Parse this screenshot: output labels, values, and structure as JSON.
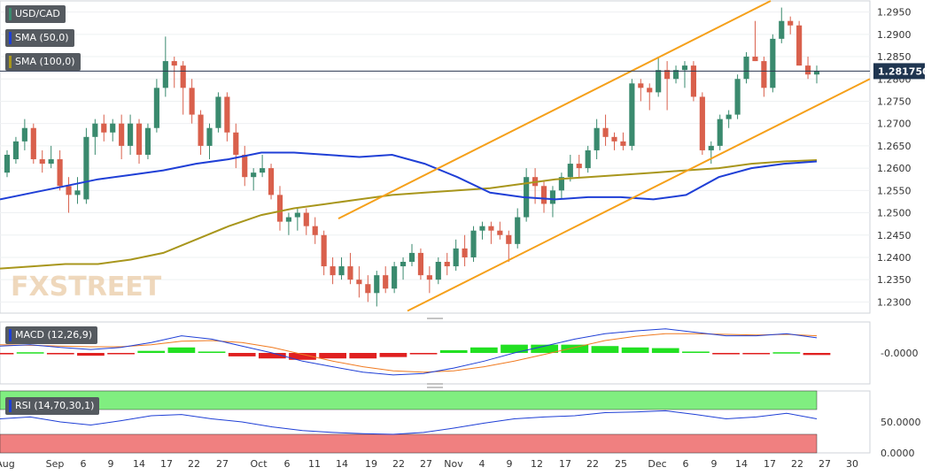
{
  "chart_data": {
    "type": "candlestick",
    "symbol": "USD/CAD",
    "last_price": "1.281750",
    "price_axis": {
      "ticks": [
        "1.2950",
        "1.2900",
        "1.2850",
        "1.2800",
        "1.2750",
        "1.2700",
        "1.2650",
        "1.2600",
        "1.2550",
        "1.2500",
        "1.2450",
        "1.2400",
        "1.2350",
        "1.2300"
      ],
      "range": [
        1.2275,
        1.2975
      ]
    },
    "x_axis_labels": [
      "Aug",
      "Sep",
      "6",
      "9",
      "14",
      "17",
      "22",
      "27",
      "Oct",
      "6",
      "11",
      "14",
      "19",
      "22",
      "27",
      "Nov",
      "4",
      "9",
      "12",
      "17",
      "22",
      "25",
      "Dec",
      "6",
      "9",
      "14",
      "17",
      "22",
      "27",
      "30"
    ],
    "indicators": {
      "sma50": {
        "name": "SMA (50,0)",
        "color": "#1f3fd6"
      },
      "sma100": {
        "name": "SMA (100,0)",
        "color": "#a8961c"
      },
      "macd": {
        "name": "MACD (12,26,9)",
        "zero_label": "-0.0000"
      },
      "rsi": {
        "name": "RSI (14,70,30,1)",
        "levels": [
          "50.0000",
          "0.0000"
        ]
      }
    },
    "colors": {
      "up": "#3a8a6e",
      "down": "#d9604c",
      "channel": "#f5a01a",
      "hist_pos": "#22e022",
      "hist_neg": "#e02020",
      "rsi_overbought": "#80ee80",
      "rsi_oversold": "#f08080"
    },
    "candles": [
      [
        1.259,
        1.264,
        1.258,
        1.263
      ],
      [
        1.262,
        1.267,
        1.261,
        1.266
      ],
      [
        1.266,
        1.271,
        1.264,
        1.269
      ],
      [
        1.269,
        1.27,
        1.261,
        1.262
      ],
      [
        1.262,
        1.264,
        1.259,
        1.261
      ],
      [
        1.261,
        1.265,
        1.26,
        1.262
      ],
      [
        1.262,
        1.264,
        1.255,
        1.256
      ],
      [
        1.256,
        1.258,
        1.25,
        1.254
      ],
      [
        1.254,
        1.258,
        1.252,
        1.255
      ],
      [
        1.253,
        1.269,
        1.252,
        1.267
      ],
      [
        1.267,
        1.271,
        1.263,
        1.27
      ],
      [
        1.27,
        1.272,
        1.266,
        1.268
      ],
      [
        1.268,
        1.271,
        1.266,
        1.27
      ],
      [
        1.27,
        1.272,
        1.262,
        1.265
      ],
      [
        1.265,
        1.272,
        1.263,
        1.27
      ],
      [
        1.27,
        1.271,
        1.261,
        1.263
      ],
      [
        1.263,
        1.27,
        1.262,
        1.269
      ],
      [
        1.269,
        1.28,
        1.268,
        1.278
      ],
      [
        1.278,
        1.2895,
        1.276,
        1.284
      ],
      [
        1.284,
        1.285,
        1.278,
        1.283
      ],
      [
        1.283,
        1.284,
        1.272,
        1.278
      ],
      [
        1.278,
        1.28,
        1.27,
        1.272
      ],
      [
        1.272,
        1.273,
        1.263,
        1.265
      ],
      [
        1.265,
        1.27,
        1.262,
        1.269
      ],
      [
        1.269,
        1.277,
        1.268,
        1.276
      ],
      [
        1.276,
        1.277,
        1.266,
        1.268
      ],
      [
        1.268,
        1.27,
        1.26,
        1.263
      ],
      [
        1.263,
        1.265,
        1.256,
        1.258
      ],
      [
        1.258,
        1.26,
        1.255,
        1.259
      ],
      [
        1.259,
        1.263,
        1.258,
        1.26
      ],
      [
        1.26,
        1.261,
        1.253,
        1.254
      ],
      [
        1.254,
        1.256,
        1.246,
        1.248
      ],
      [
        1.248,
        1.25,
        1.245,
        1.249
      ],
      [
        1.249,
        1.251,
        1.246,
        1.25
      ],
      [
        1.25,
        1.251,
        1.245,
        1.247
      ],
      [
        1.247,
        1.249,
        1.243,
        1.245
      ],
      [
        1.245,
        1.246,
        1.236,
        1.238
      ],
      [
        1.238,
        1.24,
        1.234,
        1.236
      ],
      [
        1.236,
        1.24,
        1.235,
        1.238
      ],
      [
        1.238,
        1.241,
        1.234,
        1.235
      ],
      [
        1.235,
        1.238,
        1.231,
        1.234
      ],
      [
        1.234,
        1.236,
        1.23,
        1.232
      ],
      [
        1.232,
        1.237,
        1.229,
        1.236
      ],
      [
        1.236,
        1.238,
        1.232,
        1.233
      ],
      [
        1.233,
        1.239,
        1.232,
        1.238
      ],
      [
        1.238,
        1.24,
        1.235,
        1.239
      ],
      [
        1.239,
        1.243,
        1.238,
        1.241
      ],
      [
        1.241,
        1.242,
        1.235,
        1.236
      ],
      [
        1.236,
        1.238,
        1.232,
        1.235
      ],
      [
        1.235,
        1.24,
        1.234,
        1.239
      ],
      [
        1.239,
        1.241,
        1.236,
        1.238
      ],
      [
        1.238,
        1.244,
        1.237,
        1.242
      ],
      [
        1.242,
        1.245,
        1.238,
        1.24
      ],
      [
        1.24,
        1.247,
        1.239,
        1.246
      ],
      [
        1.246,
        1.248,
        1.244,
        1.247
      ],
      [
        1.247,
        1.248,
        1.243,
        1.246
      ],
      [
        1.246,
        1.248,
        1.244,
        1.245
      ],
      [
        1.245,
        1.246,
        1.239,
        1.243
      ],
      [
        1.243,
        1.251,
        1.242,
        1.249
      ],
      [
        1.249,
        1.26,
        1.248,
        1.258
      ],
      [
        1.258,
        1.26,
        1.252,
        1.256
      ],
      [
        1.256,
        1.257,
        1.25,
        1.252
      ],
      [
        1.252,
        1.256,
        1.249,
        1.255
      ],
      [
        1.255,
        1.259,
        1.253,
        1.258
      ],
      [
        1.258,
        1.263,
        1.257,
        1.261
      ],
      [
        1.261,
        1.263,
        1.258,
        1.26
      ],
      [
        1.26,
        1.265,
        1.259,
        1.264
      ],
      [
        1.264,
        1.271,
        1.262,
        1.269
      ],
      [
        1.269,
        1.272,
        1.265,
        1.267
      ],
      [
        1.267,
        1.268,
        1.264,
        1.266
      ],
      [
        1.266,
        1.268,
        1.264,
        1.265
      ],
      [
        1.265,
        1.28,
        1.264,
        1.279
      ],
      [
        1.279,
        1.28,
        1.275,
        1.278
      ],
      [
        1.278,
        1.279,
        1.273,
        1.277
      ],
      [
        1.277,
        1.285,
        1.276,
        1.282
      ],
      [
        1.282,
        1.284,
        1.273,
        1.28
      ],
      [
        1.28,
        1.283,
        1.279,
        1.282
      ],
      [
        1.282,
        1.284,
        1.278,
        1.283
      ],
      [
        1.283,
        1.284,
        1.275,
        1.276
      ],
      [
        1.276,
        1.277,
        1.263,
        1.264
      ],
      [
        1.264,
        1.266,
        1.261,
        1.265
      ],
      [
        1.265,
        1.272,
        1.264,
        1.271
      ],
      [
        1.271,
        1.273,
        1.269,
        1.272
      ],
      [
        1.272,
        1.281,
        1.271,
        1.28
      ],
      [
        1.28,
        1.286,
        1.279,
        1.285
      ],
      [
        1.285,
        1.293,
        1.284,
        1.284
      ],
      [
        1.284,
        1.285,
        1.276,
        1.278
      ],
      [
        1.278,
        1.29,
        1.277,
        1.289
      ],
      [
        1.289,
        1.296,
        1.288,
        1.293
      ],
      [
        1.293,
        1.294,
        1.29,
        1.292
      ],
      [
        1.292,
        1.293,
        1.283,
        1.283
      ],
      [
        1.283,
        1.285,
        1.28,
        1.281
      ],
      [
        1.281,
        1.283,
        1.279,
        1.2818
      ]
    ],
    "sma50": [
      1.253,
      1.2545,
      1.256,
      1.2575,
      1.2585,
      1.2595,
      1.261,
      1.262,
      1.2635,
      1.2635,
      1.263,
      1.2625,
      1.263,
      1.261,
      1.258,
      1.2545,
      1.2535,
      1.253,
      1.2535,
      1.2535,
      1.253,
      1.254,
      1.258,
      1.26,
      1.261,
      1.2615
    ],
    "sma100": [
      1.2375,
      1.238,
      1.2385,
      1.2385,
      1.2395,
      1.241,
      1.244,
      1.247,
      1.2495,
      1.251,
      1.252,
      1.253,
      1.254,
      1.2545,
      1.255,
      1.2555,
      1.2565,
      1.2575,
      1.258,
      1.2585,
      1.259,
      1.2595,
      1.26,
      1.261,
      1.2615,
      1.2618
    ],
    "macd": [
      0.001,
      0.0012,
      0.0008,
      0.0005,
      0.0008,
      0.0015,
      0.0025,
      0.002,
      0.001,
      0.0,
      -0.0012,
      -0.002,
      -0.0028,
      -0.0032,
      -0.003,
      -0.0022,
      -0.0012,
      0.0,
      0.001,
      0.002,
      0.0028,
      0.0032,
      0.0035,
      0.003,
      0.0025,
      0.0025,
      0.0028,
      0.0022
    ],
    "macd_signal": [
      0.0012,
      0.0011,
      0.001,
      0.0009,
      0.0009,
      0.0012,
      0.0017,
      0.0018,
      0.0015,
      0.0008,
      -0.0002,
      -0.0012,
      -0.002,
      -0.0026,
      -0.0028,
      -0.0026,
      -0.002,
      -0.0012,
      -0.0002,
      0.0008,
      0.0018,
      0.0024,
      0.0028,
      0.0028,
      0.0027,
      0.0026,
      0.0027,
      0.0025
    ],
    "macd_hist": [
      -0.0002,
      0.0001,
      -0.0002,
      -0.0004,
      -0.0001,
      0.0003,
      0.0008,
      0.0002,
      -0.0005,
      -0.0008,
      -0.001,
      -0.0008,
      -0.0008,
      -0.0006,
      -0.0002,
      0.0004,
      0.0008,
      0.0012,
      0.0012,
      0.0012,
      0.001,
      0.0008,
      0.0007,
      0.0002,
      -0.0002,
      -0.0001,
      0.0001,
      -0.0003
    ],
    "rsi": [
      55,
      58,
      50,
      45,
      52,
      60,
      62,
      55,
      50,
      42,
      36,
      33,
      31,
      30,
      33,
      40,
      48,
      55,
      58,
      60,
      65,
      66,
      68,
      62,
      55,
      58,
      64,
      55
    ]
  }
}
